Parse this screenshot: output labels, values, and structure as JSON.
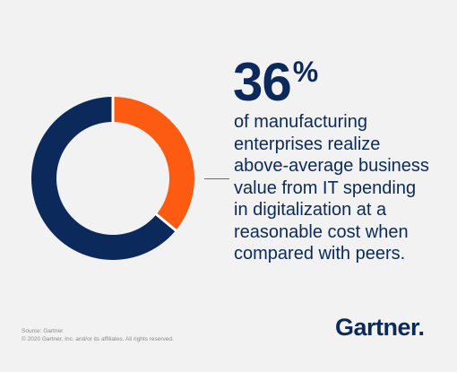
{
  "chart_data": {
    "type": "pie",
    "donut": true,
    "slices": [
      {
        "value": 36,
        "color": "#fe5b12"
      },
      {
        "value": 64,
        "color": "#0b2a5b"
      }
    ],
    "title": "",
    "legend": "none",
    "grid": false
  },
  "headline": {
    "number": "36",
    "unit": "%"
  },
  "caption": {
    "lines": [
      "of manufacturing",
      "enterprises realize",
      "above-average business",
      "value from IT spending",
      "in digitalization at a",
      "reasonable cost when",
      "compared with peers."
    ]
  },
  "footer": {
    "source": "Source: Gartner",
    "copyright": "© 2020 Gartner, Inc. and/or its affiliates. All rights reserved."
  },
  "brand": {
    "logo": "Gartner."
  }
}
